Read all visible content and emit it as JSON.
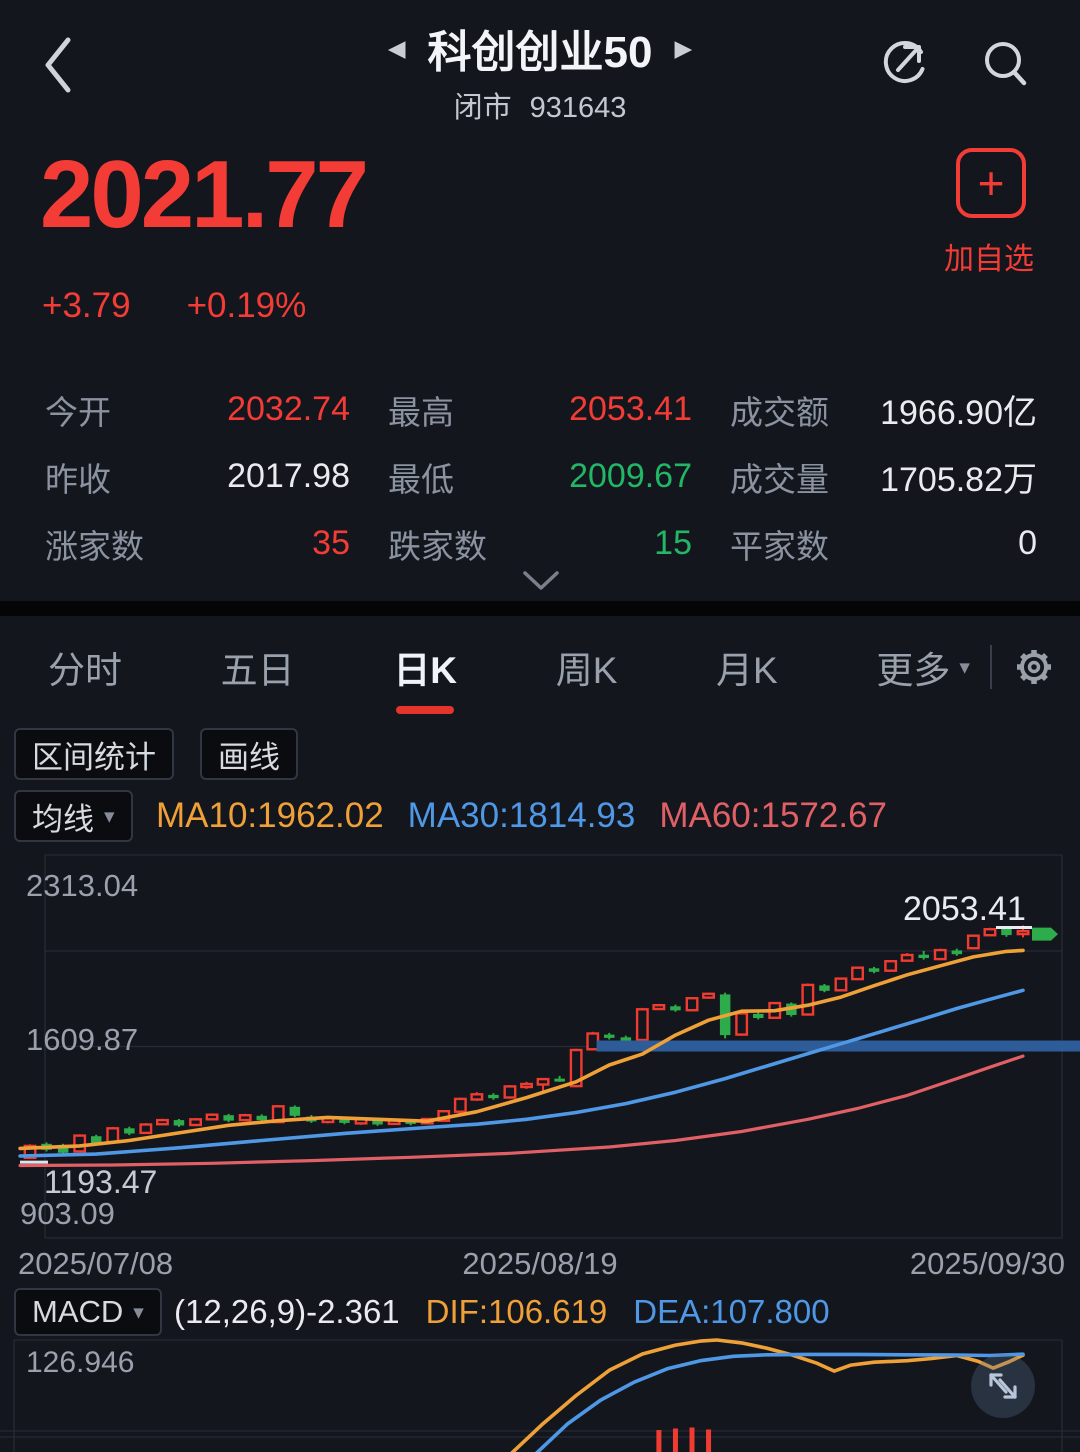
{
  "header": {
    "back_icon": "chevron-left",
    "prev_icon": "◀",
    "next_icon": "▶",
    "title": "科创创业50",
    "status": "闭市",
    "code": "931643"
  },
  "quote": {
    "price": "2021.77",
    "change": "+3.79",
    "change_pct": "+0.19%",
    "add_watchlist": {
      "plus": "+",
      "label": "加自选"
    }
  },
  "stats": {
    "items": [
      {
        "label": "今开",
        "value": "2032.74",
        "cls": "sv red"
      },
      {
        "label": "最高",
        "value": "2053.41",
        "cls": "sv red"
      },
      {
        "label": "成交额",
        "value": "1966.90亿",
        "cls": "sv"
      },
      {
        "label": "昨收",
        "value": "2017.98",
        "cls": "sv"
      },
      {
        "label": "最低",
        "value": "2009.67",
        "cls": "sv green"
      },
      {
        "label": "成交量",
        "value": "1705.82万",
        "cls": "sv"
      },
      {
        "label": "涨家数",
        "value": "35",
        "cls": "sv red"
      },
      {
        "label": "跌家数",
        "value": "15",
        "cls": "sv green"
      },
      {
        "label": "平家数",
        "value": "0",
        "cls": "sv"
      }
    ]
  },
  "tabs": {
    "items": [
      {
        "label": "分时"
      },
      {
        "label": "五日"
      },
      {
        "label": "日K"
      },
      {
        "label": "周K"
      },
      {
        "label": "月K"
      },
      {
        "label": "更多"
      }
    ],
    "active_index": 2,
    "more_caret": "▾"
  },
  "toolbar": {
    "range_stat": "区间统计",
    "draw": "画线"
  },
  "ma_bar": {
    "button": "均线",
    "caret": "▾",
    "items": [
      {
        "label": "MA10:1962.02",
        "color": "#efa137"
      },
      {
        "label": "MA30:1814.93",
        "color": "#4f98e6"
      },
      {
        "label": "MA60:1572.67",
        "color": "#e06066"
      }
    ]
  },
  "kchart": {
    "y_top": "2313.04",
    "y_mid": "1609.87",
    "low_marker": "1193.47",
    "y_bottom": "903.09",
    "high_marker": "2053.41",
    "x_labels": [
      "2025/07/08",
      "2025/08/19",
      "2025/09/30"
    ]
  },
  "macd_bar": {
    "button": "MACD",
    "caret": "▾",
    "params": "(12,26,9)-2.361",
    "dif_label": "DIF:106.619",
    "dea_label": "DEA:107.800",
    "dif_color": "#efa137",
    "dea_color": "#4f98e6"
  },
  "macd_pane": {
    "y_label": "126.946"
  },
  "colors": {
    "up_red": "#ef3b30",
    "down_green": "#2eab4b",
    "accent_red": "#f43c36",
    "hline_blue": "#2e5c99",
    "grid": "#262b35",
    "bg": "#14161d"
  },
  "chart_data": {
    "type": "candlestick",
    "title": "科创创业50 日K",
    "x_range": {
      "start_label": "2025/07/08",
      "mid_label": "2025/08/19",
      "end_label": "2025/09/30",
      "n_days": 61
    },
    "y_axis": {
      "top": 2313.04,
      "mid": 1609.87,
      "bottom": 903.09
    },
    "markers": {
      "high": 2053.41,
      "low": 1193.47,
      "last_price": 2021.77
    },
    "hline": {
      "level": 1609.87,
      "from_day": 35.6,
      "color": "#2e5c99"
    },
    "candles": [
      [
        1198,
        1248,
        1193.47,
        1242
      ],
      [
        1250,
        1255,
        1222,
        1228
      ],
      [
        1246,
        1250,
        1212,
        1217
      ],
      [
        1222,
        1285,
        1218,
        1280
      ],
      [
        1278,
        1283,
        1248,
        1253
      ],
      [
        1256,
        1312,
        1252,
        1307
      ],
      [
        1307,
        1313,
        1282,
        1288
      ],
      [
        1290,
        1326,
        1286,
        1321
      ],
      [
        1322,
        1342,
        1318,
        1337
      ],
      [
        1337,
        1341,
        1312,
        1317
      ],
      [
        1319,
        1345,
        1315,
        1340
      ],
      [
        1340,
        1362,
        1336,
        1357
      ],
      [
        1355,
        1360,
        1330,
        1335
      ],
      [
        1337,
        1360,
        1333,
        1355
      ],
      [
        1353,
        1358,
        1332,
        1337
      ],
      [
        1330,
        1392,
        1326,
        1388
      ],
      [
        1386,
        1391,
        1348,
        1353
      ],
      [
        1350,
        1356,
        1327,
        1332
      ],
      [
        1330,
        1348,
        1325,
        1344
      ],
      [
        1342,
        1347,
        1322,
        1327
      ],
      [
        1325,
        1344,
        1320,
        1340
      ],
      [
        1338,
        1342,
        1316,
        1321
      ],
      [
        1323,
        1341,
        1319,
        1336
      ],
      [
        1334,
        1339,
        1318,
        1323
      ],
      [
        1325,
        1345,
        1321,
        1341
      ],
      [
        1335,
        1374,
        1331,
        1370
      ],
      [
        1368,
        1420,
        1362,
        1415
      ],
      [
        1413,
        1440,
        1408,
        1432
      ],
      [
        1430,
        1436,
        1412,
        1418
      ],
      [
        1420,
        1466,
        1416,
        1461
      ],
      [
        1460,
        1478,
        1452,
        1470
      ],
      [
        1468,
        1492,
        1443,
        1488
      ],
      [
        1490,
        1500,
        1478,
        1483
      ],
      [
        1462,
        1600,
        1458,
        1595
      ],
      [
        1598,
        1662,
        1594,
        1656
      ],
      [
        1652,
        1658,
        1634,
        1640
      ],
      [
        1642,
        1648,
        1622,
        1628
      ],
      [
        1632,
        1750,
        1628,
        1745
      ],
      [
        1746,
        1765,
        1742,
        1760
      ],
      [
        1756,
        1762,
        1736,
        1741
      ],
      [
        1742,
        1790,
        1738,
        1786
      ],
      [
        1788,
        1806,
        1784,
        1802
      ],
      [
        1800,
        1806,
        1638,
        1650
      ],
      [
        1652,
        1734,
        1648,
        1730
      ],
      [
        1728,
        1734,
        1708,
        1713
      ],
      [
        1714,
        1772,
        1710,
        1768
      ],
      [
        1766,
        1770,
        1718,
        1724
      ],
      [
        1726,
        1840,
        1722,
        1835
      ],
      [
        1833,
        1838,
        1808,
        1813
      ],
      [
        1815,
        1862,
        1812,
        1858
      ],
      [
        1856,
        1902,
        1852,
        1898
      ],
      [
        1896,
        1901,
        1878,
        1883
      ],
      [
        1887,
        1926,
        1883,
        1922
      ],
      [
        1924,
        1952,
        1920,
        1945
      ],
      [
        1946,
        1960,
        1928,
        1934
      ],
      [
        1930,
        1968,
        1926,
        1963
      ],
      [
        1962,
        1968,
        1942,
        1948
      ],
      [
        1970,
        2020,
        1966,
        2016
      ],
      [
        2018,
        2045,
        2014,
        2040
      ],
      [
        2046,
        2050,
        2012,
        2017.98
      ],
      [
        2032.74,
        2053.41,
        2009.67,
        2021.77
      ]
    ],
    "ma": {
      "ma10": {
        "color": "#efa137",
        "points": [
          [
            0.4,
            1233
          ],
          [
            4,
            1242
          ],
          [
            7,
            1262
          ],
          [
            10,
            1290
          ],
          [
            13,
            1318
          ],
          [
            16,
            1335
          ],
          [
            19,
            1347
          ],
          [
            22,
            1340
          ],
          [
            25,
            1333
          ],
          [
            28,
            1368
          ],
          [
            31,
            1420
          ],
          [
            34,
            1478
          ],
          [
            36,
            1540
          ],
          [
            38,
            1580
          ],
          [
            40,
            1650
          ],
          [
            42,
            1705
          ],
          [
            44,
            1738
          ],
          [
            46,
            1740
          ],
          [
            48,
            1760
          ],
          [
            50,
            1790
          ],
          [
            52,
            1832
          ],
          [
            54,
            1872
          ],
          [
            56,
            1905
          ],
          [
            58,
            1938
          ],
          [
            60,
            1958
          ],
          [
            61,
            1962.02
          ]
        ]
      },
      "ma30": {
        "color": "#4f98e6",
        "points": [
          [
            0.4,
            1205
          ],
          [
            5,
            1212
          ],
          [
            10,
            1235
          ],
          [
            15,
            1262
          ],
          [
            20,
            1288
          ],
          [
            25,
            1310
          ],
          [
            28,
            1322
          ],
          [
            31,
            1340
          ],
          [
            34,
            1365
          ],
          [
            37,
            1398
          ],
          [
            40,
            1440
          ],
          [
            43,
            1490
          ],
          [
            46,
            1545
          ],
          [
            49,
            1600
          ],
          [
            52,
            1655
          ],
          [
            55,
            1710
          ],
          [
            57,
            1748
          ],
          [
            59,
            1782
          ],
          [
            61,
            1814.93
          ]
        ]
      },
      "ma60": {
        "color": "#e06066",
        "points": [
          [
            0.4,
            1170
          ],
          [
            6,
            1172
          ],
          [
            12,
            1178
          ],
          [
            18,
            1188
          ],
          [
            24,
            1200
          ],
          [
            30,
            1215
          ],
          [
            36,
            1238
          ],
          [
            40,
            1262
          ],
          [
            44,
            1295
          ],
          [
            48,
            1340
          ],
          [
            51,
            1380
          ],
          [
            54,
            1428
          ],
          [
            57,
            1490
          ],
          [
            59,
            1532
          ],
          [
            61,
            1572.67
          ]
        ]
      }
    },
    "macd": {
      "params": "(12,26,9)",
      "macd_value": -2.361,
      "dif": 106.619,
      "dea": 107.8,
      "top_axis": 126.946,
      "dif_line": [
        [
          30,
          -28
        ],
        [
          32,
          14
        ],
        [
          34,
          52
        ],
        [
          36,
          86
        ],
        [
          38,
          108
        ],
        [
          40,
          120
        ],
        [
          41.5,
          125.5
        ],
        [
          42.5,
          126.9
        ],
        [
          44,
          123
        ],
        [
          45.5,
          116
        ],
        [
          47,
          107
        ],
        [
          48.5,
          96
        ],
        [
          49.6,
          85
        ],
        [
          50.6,
          93
        ],
        [
          52,
          97
        ],
        [
          54,
          99
        ],
        [
          55.5,
          102
        ],
        [
          57,
          106
        ],
        [
          58.3,
          98
        ],
        [
          59.2,
          89
        ],
        [
          60.2,
          98
        ],
        [
          61,
          106.619
        ]
      ],
      "dea_line": [
        [
          31.5,
          -28
        ],
        [
          33.5,
          14
        ],
        [
          35.5,
          46
        ],
        [
          37.5,
          70
        ],
        [
          39.5,
          88
        ],
        [
          41.5,
          99
        ],
        [
          43.5,
          105
        ],
        [
          45.5,
          107
        ],
        [
          48,
          107.5
        ],
        [
          51,
          107.5
        ],
        [
          54,
          107
        ],
        [
          57,
          106.5
        ],
        [
          59,
          106
        ],
        [
          61,
          107.8
        ]
      ],
      "hist": [
        [
          39,
          24
        ],
        [
          40,
          30
        ],
        [
          41,
          34
        ],
        [
          42,
          26
        ]
      ]
    }
  }
}
